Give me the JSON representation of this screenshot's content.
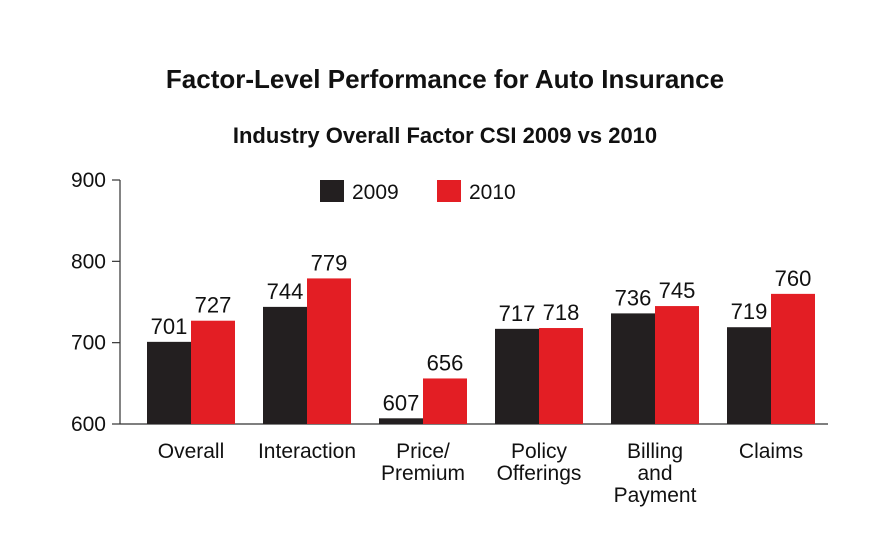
{
  "chart_data": {
    "type": "bar",
    "title": "Factor-Level Performance for Auto Insurance",
    "subtitle": "Industry Overall Factor CSI 2009 vs 2010",
    "categories": [
      [
        "Overall"
      ],
      [
        "Interaction"
      ],
      [
        "Price/",
        "Premium"
      ],
      [
        "Policy",
        "Offerings"
      ],
      [
        "Billing",
        "and",
        "Payment"
      ],
      [
        "Claims"
      ]
    ],
    "series": [
      {
        "name": "2009",
        "color": "#231f20",
        "values": [
          701,
          744,
          607,
          717,
          736,
          719
        ]
      },
      {
        "name": "2010",
        "color": "#e31e24",
        "values": [
          727,
          779,
          656,
          718,
          745,
          760
        ]
      }
    ],
    "ylim": [
      600,
      900
    ],
    "yticks": [
      600,
      700,
      800,
      900
    ],
    "legend_position": "top-center",
    "grid": false
  }
}
